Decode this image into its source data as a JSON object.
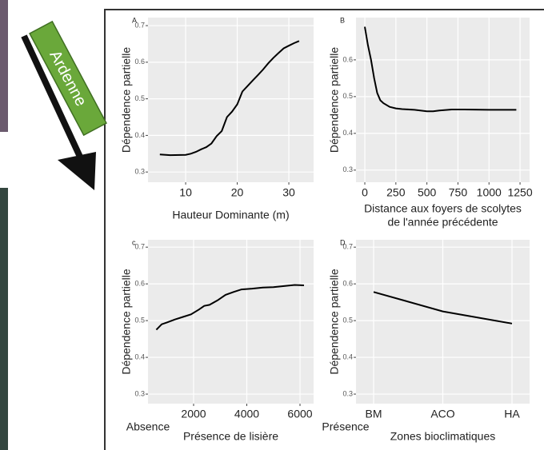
{
  "banner": {
    "label": "Ardenne"
  },
  "chart_data": [
    {
      "type": "line",
      "panel_label": "A",
      "xlabel": "Hauteur Dominante (m)",
      "ylabel": "Dépendence partielle",
      "x": [
        5,
        7,
        10,
        11,
        12,
        13,
        14,
        15,
        16,
        17,
        18,
        19,
        20,
        21,
        22,
        23,
        24,
        25,
        26,
        27,
        28,
        29,
        30,
        31,
        32
      ],
      "values": [
        0.348,
        0.346,
        0.347,
        0.35,
        0.355,
        0.362,
        0.368,
        0.378,
        0.398,
        0.412,
        0.45,
        0.465,
        0.485,
        0.52,
        0.535,
        0.55,
        0.565,
        0.58,
        0.597,
        0.612,
        0.625,
        0.638,
        0.645,
        0.652,
        0.658
      ],
      "color": "#000000",
      "xlim": [
        2.7,
        34.8
      ],
      "xticks": [
        10,
        20,
        30
      ],
      "ylim": [
        0.272,
        0.722
      ],
      "yticks": [
        0.3,
        0.4,
        0.5,
        0.6,
        0.7
      ],
      "grid": true
    },
    {
      "type": "line",
      "panel_label": "B",
      "xlabel": [
        "Distance aux foyers de scolytes",
        "de l'année précédente"
      ],
      "ylabel": "Dépendence partielle",
      "x": [
        0,
        25,
        50,
        75,
        100,
        125,
        150,
        200,
        250,
        300,
        400,
        500,
        550,
        600,
        700,
        800,
        1000,
        1220
      ],
      "values": [
        0.69,
        0.64,
        0.6,
        0.55,
        0.51,
        0.49,
        0.482,
        0.472,
        0.468,
        0.466,
        0.464,
        0.46,
        0.46,
        0.462,
        0.465,
        0.465,
        0.464,
        0.464
      ],
      "color": "#000000",
      "xlim": [
        -71,
        1327
      ],
      "xticks": [
        0,
        250,
        500,
        750,
        1000,
        1250
      ],
      "ylim": [
        0.267,
        0.715
      ],
      "yticks": [
        0.3,
        0.4,
        0.5,
        0.6
      ],
      "grid": true
    },
    {
      "type": "line",
      "panel_label": "c",
      "xlabel": "Présence de lisière",
      "ylabel": "Dépendence partielle",
      "annotations": [
        "Absence",
        "Présence"
      ],
      "x": [
        600,
        800,
        1000,
        1300,
        1600,
        1900,
        2200,
        2400,
        2600,
        2900,
        3200,
        3500,
        3800,
        4200,
        4600,
        5000,
        5400,
        5800,
        6150
      ],
      "values": [
        0.475,
        0.49,
        0.495,
        0.503,
        0.51,
        0.517,
        0.53,
        0.54,
        0.543,
        0.555,
        0.57,
        0.578,
        0.585,
        0.587,
        0.59,
        0.591,
        0.594,
        0.597,
        0.596
      ],
      "color": "#000000",
      "xlim": [
        286,
        6511
      ],
      "xticks": [
        2000,
        4000,
        6000
      ],
      "ylim": [
        0.274,
        0.72
      ],
      "yticks": [
        0.3,
        0.4,
        0.5,
        0.6,
        0.7
      ],
      "grid": true
    },
    {
      "type": "line",
      "panel_label": "D",
      "xlabel": "Zones bioclimatiques",
      "ylabel": "Dépendence partielle",
      "categories": [
        "BM",
        "ACO",
        "HA"
      ],
      "values": [
        0.578,
        0.525,
        0.492
      ],
      "color": "#000000",
      "ylim": [
        0.274,
        0.72
      ],
      "yticks": [
        0.3,
        0.4,
        0.5,
        0.6,
        0.7
      ],
      "grid": true
    }
  ]
}
